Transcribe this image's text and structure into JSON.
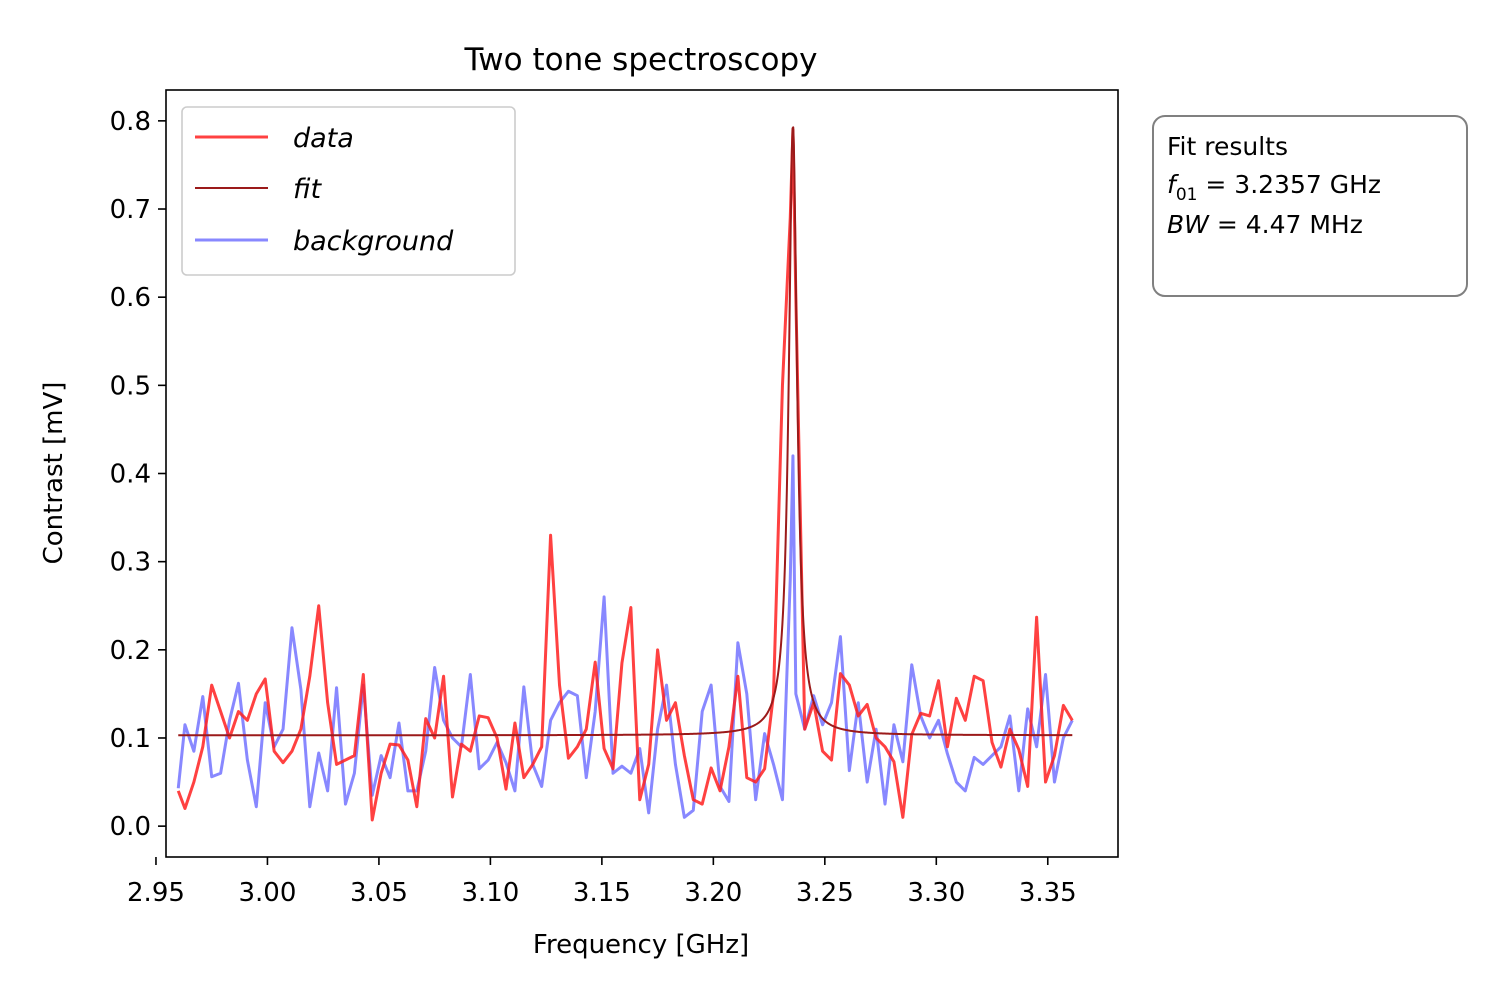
{
  "chart_data": {
    "type": "line",
    "title": "Two tone spectroscopy",
    "xlabel": "Frequency [GHz]",
    "ylabel": "Contrast [mV]",
    "xlim": [
      2.9545,
      3.3815
    ],
    "ylim": [
      -0.035,
      0.835
    ],
    "xticks": [
      2.95,
      3.0,
      3.05,
      3.1,
      3.15,
      3.2,
      3.25,
      3.3,
      3.35
    ],
    "xtick_labels": [
      "2.95",
      "3.00",
      "3.05",
      "3.10",
      "3.15",
      "3.20",
      "3.25",
      "3.30",
      "3.35"
    ],
    "yticks": [
      0.0,
      0.1,
      0.2,
      0.3,
      0.4,
      0.5,
      0.6,
      0.7,
      0.8
    ],
    "ytick_labels": [
      "0.0",
      "0.1",
      "0.2",
      "0.3",
      "0.4",
      "0.5",
      "0.6",
      "0.7",
      "0.8"
    ],
    "grid": false,
    "legend_position": "top-left",
    "x": [
      2.96,
      2.963,
      2.967,
      2.971,
      2.975,
      2.979,
      2.983,
      2.987,
      2.991,
      2.995,
      2.999,
      3.003,
      3.007,
      3.011,
      3.015,
      3.019,
      3.023,
      3.027,
      3.031,
      3.035,
      3.039,
      3.043,
      3.047,
      3.051,
      3.055,
      3.059,
      3.063,
      3.067,
      3.071,
      3.075,
      3.079,
      3.083,
      3.087,
      3.091,
      3.095,
      3.099,
      3.103,
      3.107,
      3.111,
      3.115,
      3.119,
      3.123,
      3.127,
      3.131,
      3.135,
      3.139,
      3.143,
      3.147,
      3.151,
      3.155,
      3.159,
      3.163,
      3.167,
      3.171,
      3.175,
      3.179,
      3.183,
      3.187,
      3.191,
      3.195,
      3.199,
      3.203,
      3.207,
      3.211,
      3.215,
      3.219,
      3.223,
      3.227,
      3.231,
      3.2345,
      3.2357,
      3.237,
      3.241,
      3.245,
      3.249,
      3.253,
      3.257,
      3.261,
      3.265,
      3.269,
      3.273,
      3.277,
      3.281,
      3.285,
      3.289,
      3.293,
      3.297,
      3.301,
      3.305,
      3.309,
      3.313,
      3.317,
      3.321,
      3.325,
      3.329,
      3.333,
      3.337,
      3.341,
      3.345,
      3.349,
      3.353,
      3.357,
      3.361
    ],
    "series": [
      {
        "name": "data",
        "color": "#ff2020",
        "opacity": 0.85,
        "values": [
          0.04,
          0.02,
          0.05,
          0.09,
          0.16,
          0.13,
          0.1,
          0.13,
          0.12,
          0.15,
          0.167,
          0.085,
          0.072,
          0.085,
          0.11,
          0.17,
          0.25,
          0.14,
          0.07,
          0.075,
          0.08,
          0.172,
          0.007,
          0.06,
          0.093,
          0.092,
          0.075,
          0.022,
          0.122,
          0.1,
          0.17,
          0.033,
          0.093,
          0.085,
          0.125,
          0.123,
          0.1,
          0.042,
          0.117,
          0.055,
          0.07,
          0.09,
          0.33,
          0.16,
          0.077,
          0.09,
          0.11,
          0.186,
          0.088,
          0.065,
          0.185,
          0.248,
          0.03,
          0.07,
          0.2,
          0.12,
          0.14,
          0.08,
          0.03,
          0.025,
          0.066,
          0.04,
          0.09,
          0.17,
          0.055,
          0.05,
          0.065,
          0.15,
          0.5,
          0.69,
          0.79,
          0.6,
          0.11,
          0.14,
          0.085,
          0.075,
          0.173,
          0.16,
          0.125,
          0.138,
          0.1,
          0.09,
          0.073,
          0.01,
          0.104,
          0.128,
          0.125,
          0.165,
          0.09,
          0.145,
          0.12,
          0.17,
          0.165,
          0.095,
          0.067,
          0.11,
          0.087,
          0.045,
          0.237,
          0.05,
          0.08,
          0.137,
          0.12
        ]
      },
      {
        "name": "fit",
        "color": "#9b1a1a",
        "opacity": 1,
        "f0": 3.2357,
        "bw_ghz": 0.00447,
        "baseline": 0.103,
        "peak": 0.795,
        "x_range": [
          2.96,
          3.361
        ]
      },
      {
        "name": "background",
        "color": "#5555ff",
        "opacity": 0.7,
        "values": [
          0.043,
          0.115,
          0.085,
          0.147,
          0.056,
          0.06,
          0.12,
          0.162,
          0.075,
          0.022,
          0.14,
          0.09,
          0.11,
          0.225,
          0.155,
          0.022,
          0.083,
          0.04,
          0.157,
          0.025,
          0.06,
          0.16,
          0.035,
          0.08,
          0.055,
          0.117,
          0.04,
          0.04,
          0.085,
          0.18,
          0.12,
          0.1,
          0.09,
          0.172,
          0.065,
          0.075,
          0.095,
          0.072,
          0.04,
          0.158,
          0.07,
          0.045,
          0.12,
          0.14,
          0.153,
          0.148,
          0.055,
          0.13,
          0.26,
          0.06,
          0.068,
          0.06,
          0.088,
          0.015,
          0.11,
          0.16,
          0.07,
          0.01,
          0.018,
          0.13,
          0.16,
          0.045,
          0.028,
          0.208,
          0.15,
          0.03,
          0.105,
          0.07,
          0.03,
          0.28,
          0.42,
          0.15,
          0.11,
          0.148,
          0.115,
          0.14,
          0.215,
          0.063,
          0.14,
          0.05,
          0.11,
          0.025,
          0.115,
          0.073,
          0.183,
          0.125,
          0.1,
          0.12,
          0.082,
          0.05,
          0.04,
          0.078,
          0.07,
          0.08,
          0.09,
          0.125,
          0.04,
          0.133,
          0.09,
          0.172,
          0.05,
          0.1,
          0.12
        ]
      }
    ],
    "annotation": {
      "title": "Fit results",
      "f01_label": "f",
      "f01_sub": "01",
      "f01_text": " = 3.2357 GHz",
      "bw_label": "BW",
      "bw_text": " = 4.47 MHz"
    }
  }
}
